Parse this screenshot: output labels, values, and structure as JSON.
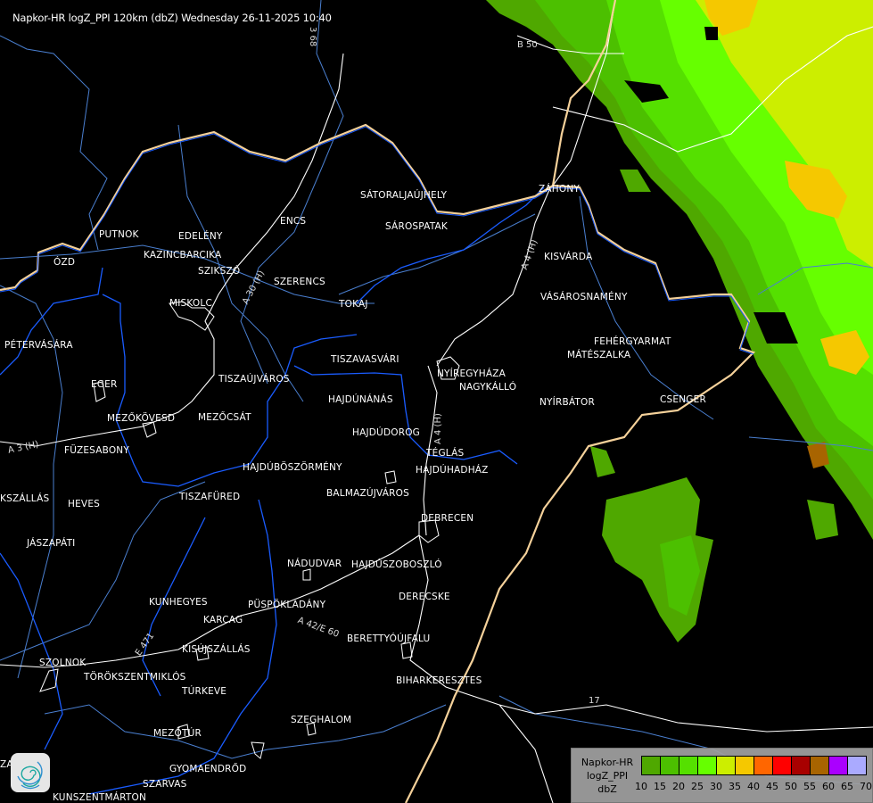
{
  "title": "Napkor-HR logZ_PPI 120km (dbZ) Wednesday 26-11-2025 10:40",
  "colors": {
    "background": "#000000",
    "country_border": "#f5d19a",
    "rivers": "#1a5cff",
    "county_lines": "#4a7fd0",
    "roads": "#ffffff"
  },
  "cities": [
    "SÁTORALJAÚJHELY",
    "ZÁHONY",
    "SÁROSPATAK",
    "ENCS",
    "PUTNOK",
    "EDELÉNY",
    "KAZINCBARCIKA",
    "ÓZD",
    "SZIKSZÓ",
    "SZERENCS",
    "TOKAJ",
    "MISKOLC",
    "KISVÁRDA",
    "VÁSÁROSNAMÉNY",
    "PÉTERVÁSÁRA",
    "FEHÉRGYARMAT",
    "MÁTÉSZALKA",
    "TISZAVASVÁRI",
    "NYÍREGYHÁZA",
    "EGER",
    "TISZAÚJVÁROS",
    "NAGYKÁLLÓ",
    "HAJDÚNÁNÁS",
    "NYÍRBÁTOR",
    "CSENGER",
    "MEZŐKÖVESD",
    "MEZŐCSÁT",
    "HAJDÚDOROG",
    "FÜZESABONY",
    "TÉGLÁS",
    "HAJDÚBÖSZÖRMÉNY",
    "HAJDÚHADHÁZ",
    "BALMAZÚJVÁROS",
    "KSZÁLLÁS",
    "TISZAFÜRED",
    "HEVES",
    "DEBRECEN",
    "JÁSZAPÁTI",
    "NÁDUDVAR",
    "HAJDÚSZOBOSZLÓ",
    "DERECSKE",
    "KUNHEGYES",
    "KARCAG",
    "PÜSPÖKLADÁNY",
    "BERETTYÓÚJFALU",
    "KISÚJSZÁLLÁS",
    "SZOLNOK",
    "TÖRÖKSZENTMIKLÓS",
    "BIHARKERESZTES",
    "TÚRKEVE",
    "SZEGHALOM",
    "MEZŐTÚR",
    "GYOMAENDRŐD",
    "SZARVAS",
    "KUNSZENTMÁRTON",
    "ZA"
  ],
  "roads": [
    "A 3 (H)",
    "A 30 (H)",
    "A 4 (H)",
    "A 4 (H)",
    "A 42/E 60",
    "B 50",
    "3 68",
    "E 471",
    "17"
  ],
  "legend": {
    "lines": [
      "Napkor-HR",
      "logZ_PPI",
      "dbZ"
    ],
    "colors": [
      "#4fa800",
      "#4cc000",
      "#55e000",
      "#66ff00",
      "#ccee00",
      "#f5c800",
      "#ff6600",
      "#ff0000",
      "#a80000",
      "#a86400",
      "#aa00ff",
      "#aaaaff"
    ],
    "ticks": [
      "10",
      "15",
      "20",
      "25",
      "30",
      "35",
      "40",
      "45",
      "50",
      "55",
      "60",
      "65",
      "70"
    ]
  },
  "logo": {
    "icon": "spiral-logo-icon"
  }
}
